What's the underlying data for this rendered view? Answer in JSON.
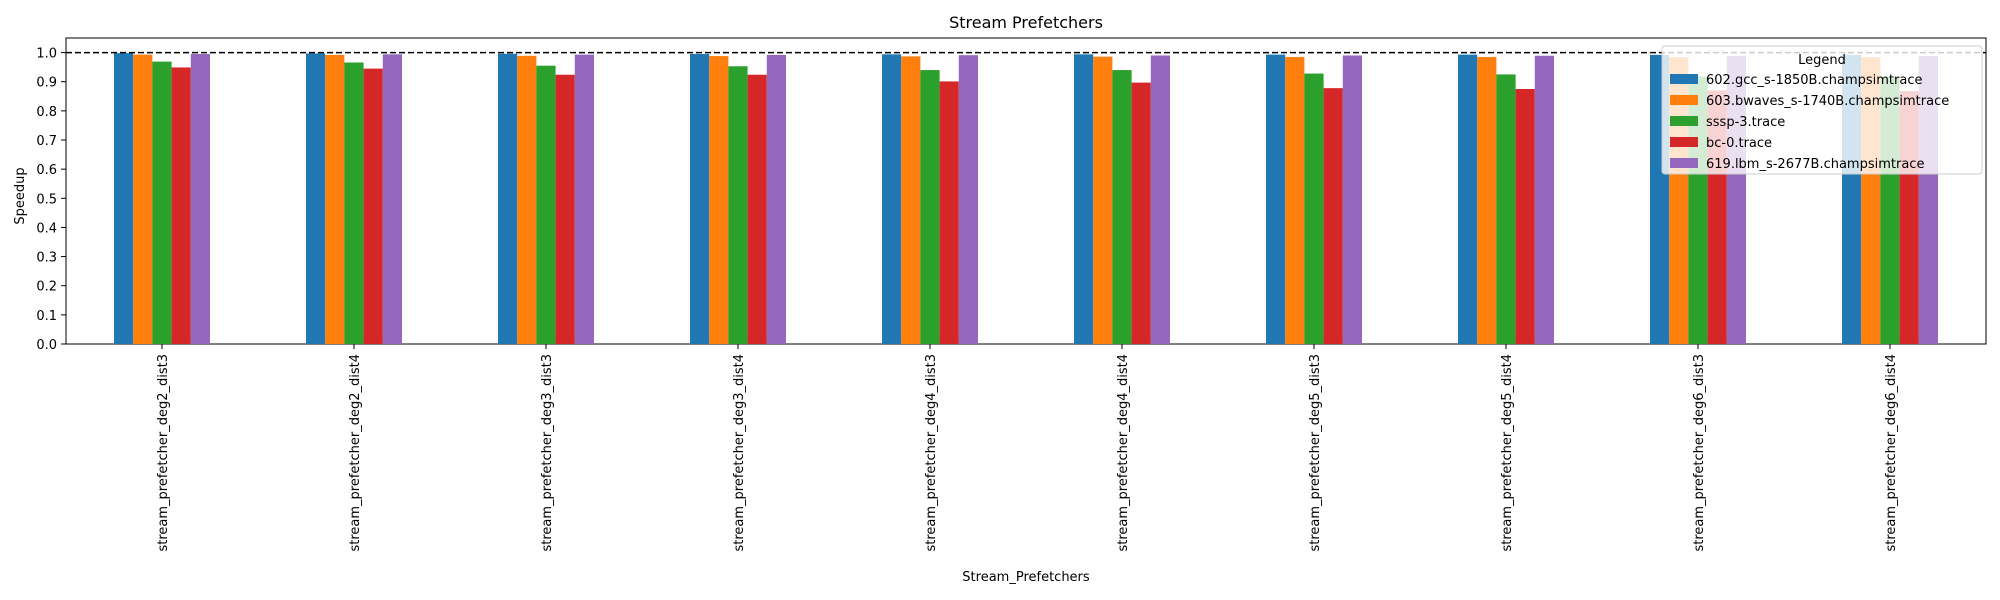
{
  "chart_data": {
    "type": "bar",
    "title": "Stream Prefetchers",
    "xlabel": "Stream_Prefetchers",
    "ylabel": "Speedup",
    "ylim": [
      0,
      1.05
    ],
    "yticks": [
      "0.0",
      "0.1",
      "0.2",
      "0.3",
      "0.4",
      "0.5",
      "0.6",
      "0.7",
      "0.8",
      "0.9",
      "1.0"
    ],
    "reference_line": {
      "y": 1.0,
      "style": "dashed",
      "color": "#000000"
    },
    "grid": false,
    "legend": {
      "title": "Legend",
      "placement": "top-right"
    },
    "categories": [
      "stream_prefetcher_deg2_dist3",
      "stream_prefetcher_deg2_dist4",
      "stream_prefetcher_deg3_dist3",
      "stream_prefetcher_deg3_dist4",
      "stream_prefetcher_deg4_dist3",
      "stream_prefetcher_deg4_dist4",
      "stream_prefetcher_deg5_dist3",
      "stream_prefetcher_deg5_dist4",
      "stream_prefetcher_deg6_dist3",
      "stream_prefetcher_deg6_dist4"
    ],
    "series": [
      {
        "name": "602.gcc_s-1850B.champsimtrace",
        "color": "#1f77b4",
        "values": [
          0.998,
          0.997,
          0.996,
          0.995,
          0.994,
          0.994,
          0.993,
          0.993,
          0.992,
          0.992
        ]
      },
      {
        "name": "603.bwaves_s-1740B.champsimtrace",
        "color": "#ff7f0e",
        "values": [
          0.993,
          0.992,
          0.989,
          0.988,
          0.987,
          0.986,
          0.985,
          0.985,
          0.984,
          0.984
        ]
      },
      {
        "name": "sssp-3.trace",
        "color": "#2ca02c",
        "values": [
          0.969,
          0.966,
          0.955,
          0.953,
          0.94,
          0.94,
          0.928,
          0.925,
          0.918,
          0.916
        ]
      },
      {
        "name": "bc-0.trace",
        "color": "#d62728",
        "values": [
          0.949,
          0.945,
          0.924,
          0.924,
          0.901,
          0.897,
          0.878,
          0.875,
          0.87,
          0.868
        ]
      },
      {
        "name": "619.lbm_s-2677B.champsimtrace",
        "color": "#9467bd",
        "values": [
          0.995,
          0.994,
          0.993,
          0.992,
          0.991,
          0.99,
          0.99,
          0.989,
          0.988,
          0.988
        ]
      }
    ]
  }
}
